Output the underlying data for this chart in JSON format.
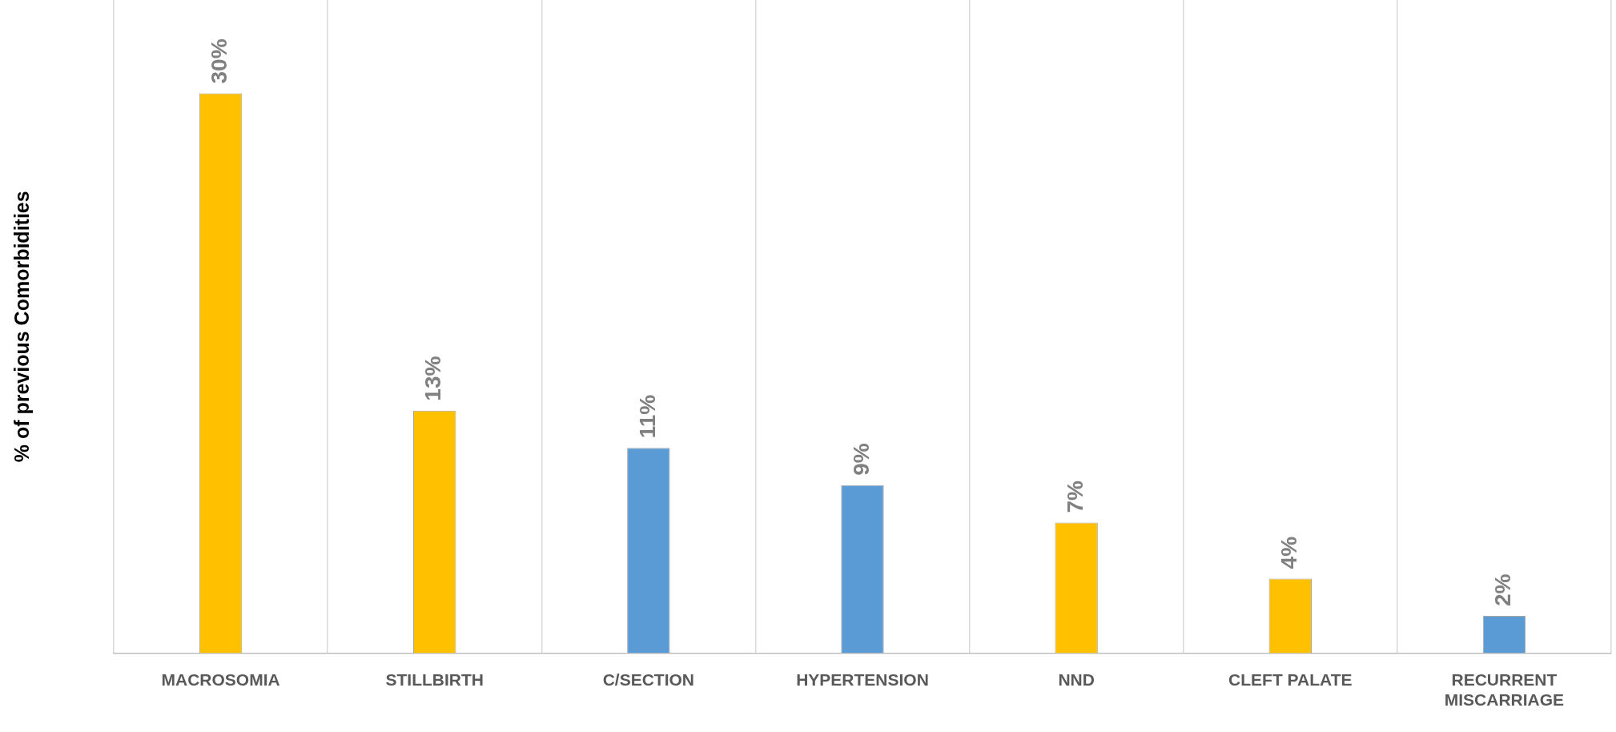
{
  "chart_data": {
    "type": "bar",
    "ylabel": "% of previous Comorbidities",
    "categories": [
      "MACROSOMIA",
      "STILLBIRTH",
      "C/SECTION",
      "HYPERTENSION",
      "NND",
      "CLEFT PALATE",
      "RECURRENT MISCARRIAGE"
    ],
    "values": [
      30,
      13,
      11,
      9,
      7,
      4,
      2
    ],
    "colors": [
      "#ffc000",
      "#ffc000",
      "#5b9bd5",
      "#5b9bd5",
      "#ffc000",
      "#ffc000",
      "#5b9bd5"
    ],
    "value_labels": [
      "30%",
      "13%",
      "11%",
      "9%",
      "7%",
      "4%",
      "2%"
    ],
    "ylim": [
      0,
      35
    ],
    "tick_labels": "x",
    "grid": "x",
    "legend": false
  }
}
